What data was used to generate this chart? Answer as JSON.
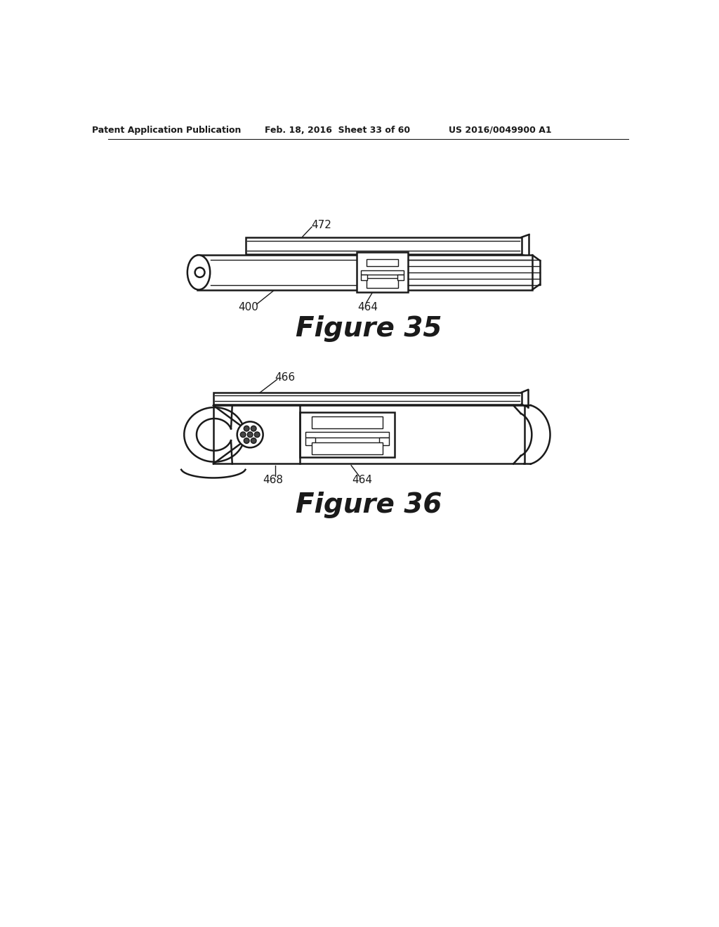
{
  "bg_color": "#ffffff",
  "line_color": "#1a1a1a",
  "header_left": "Patent Application Publication",
  "header_mid": "Feb. 18, 2016  Sheet 33 of 60",
  "header_right": "US 2016/0049900 A1",
  "fig35_title": "Figure 35",
  "fig36_title": "Figure 36",
  "label_472": "472",
  "label_400": "400",
  "label_464_top": "464",
  "label_466": "466",
  "label_468": "468",
  "label_464_bot": "464"
}
